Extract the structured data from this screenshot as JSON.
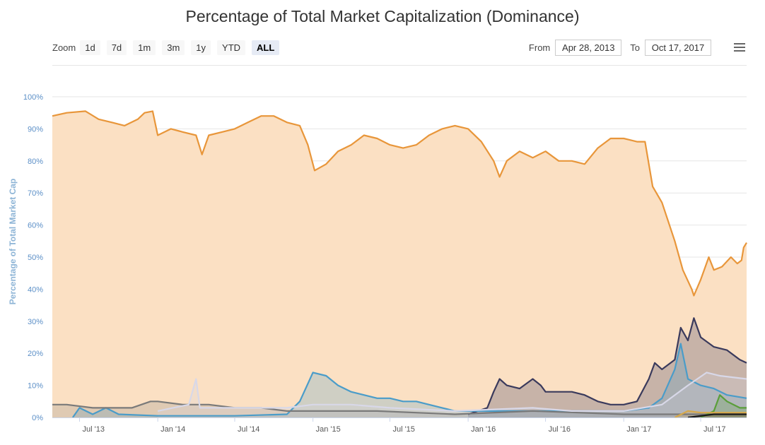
{
  "chart_data": {
    "type": "area",
    "title": "Percentage of Total Market Capitalization (Dominance)",
    "ylabel": "Percentage of Total Market Cap",
    "ylim": [
      0,
      100
    ],
    "y_ticks": [
      "0%",
      "10%",
      "20%",
      "30%",
      "40%",
      "50%",
      "60%",
      "70%",
      "80%",
      "90%",
      "100%"
    ],
    "x_range": [
      "2013-04-28",
      "2017-10-17"
    ],
    "x_ticks": [
      {
        "date": "2013-07-01",
        "label": "Jul '13"
      },
      {
        "date": "2014-01-01",
        "label": "Jan '14"
      },
      {
        "date": "2014-07-01",
        "label": "Jul '14"
      },
      {
        "date": "2015-01-01",
        "label": "Jan '15"
      },
      {
        "date": "2015-07-01",
        "label": "Jul '15"
      },
      {
        "date": "2016-01-01",
        "label": "Jan '16"
      },
      {
        "date": "2016-07-01",
        "label": "Jul '16"
      },
      {
        "date": "2017-01-01",
        "label": "Jan '17"
      },
      {
        "date": "2017-07-01",
        "label": "Jul '17"
      }
    ],
    "grid": true,
    "series": [
      {
        "color": "#e8963a",
        "fill": "#fbe0c3",
        "points": [
          [
            "2013-04-28",
            94
          ],
          [
            "2013-06-01",
            95
          ],
          [
            "2013-07-15",
            95.5
          ],
          [
            "2013-08-15",
            93
          ],
          [
            "2013-09-15",
            92
          ],
          [
            "2013-10-15",
            91
          ],
          [
            "2013-11-15",
            93
          ],
          [
            "2013-12-01",
            95
          ],
          [
            "2013-12-20",
            95.5
          ],
          [
            "2014-01-01",
            88
          ],
          [
            "2014-02-01",
            90
          ],
          [
            "2014-03-01",
            89
          ],
          [
            "2014-04-01",
            88
          ],
          [
            "2014-04-15",
            82
          ],
          [
            "2014-05-01",
            88
          ],
          [
            "2014-06-01",
            89
          ],
          [
            "2014-07-01",
            90
          ],
          [
            "2014-08-01",
            92
          ],
          [
            "2014-09-01",
            94
          ],
          [
            "2014-10-01",
            94
          ],
          [
            "2014-11-01",
            92
          ],
          [
            "2014-12-01",
            91
          ],
          [
            "2014-12-20",
            85
          ],
          [
            "2015-01-05",
            77
          ],
          [
            "2015-02-01",
            79
          ],
          [
            "2015-03-01",
            83
          ],
          [
            "2015-04-01",
            85
          ],
          [
            "2015-05-01",
            88
          ],
          [
            "2015-06-01",
            87
          ],
          [
            "2015-07-01",
            85
          ],
          [
            "2015-08-01",
            84
          ],
          [
            "2015-09-01",
            85
          ],
          [
            "2015-10-01",
            88
          ],
          [
            "2015-11-01",
            90
          ],
          [
            "2015-12-01",
            91
          ],
          [
            "2016-01-01",
            90
          ],
          [
            "2016-02-01",
            86
          ],
          [
            "2016-03-01",
            80
          ],
          [
            "2016-03-15",
            75
          ],
          [
            "2016-04-01",
            80
          ],
          [
            "2016-05-01",
            83
          ],
          [
            "2016-06-01",
            81
          ],
          [
            "2016-07-01",
            83
          ],
          [
            "2016-08-01",
            80
          ],
          [
            "2016-09-01",
            80
          ],
          [
            "2016-10-01",
            79
          ],
          [
            "2016-11-01",
            84
          ],
          [
            "2016-12-01",
            87
          ],
          [
            "2017-01-01",
            87
          ],
          [
            "2017-02-01",
            86
          ],
          [
            "2017-02-20",
            86
          ],
          [
            "2017-03-10",
            72
          ],
          [
            "2017-04-01",
            67
          ],
          [
            "2017-05-01",
            55
          ],
          [
            "2017-05-20",
            46
          ],
          [
            "2017-06-10",
            40
          ],
          [
            "2017-06-15",
            38
          ],
          [
            "2017-07-01",
            43
          ],
          [
            "2017-07-20",
            50
          ],
          [
            "2017-08-01",
            46
          ],
          [
            "2017-08-20",
            47
          ],
          [
            "2017-09-10",
            50
          ],
          [
            "2017-09-25",
            48
          ],
          [
            "2017-10-05",
            49
          ],
          [
            "2017-10-10",
            53
          ],
          [
            "2017-10-17",
            54.5
          ]
        ]
      },
      {
        "color": "#3a3a5c",
        "fill": "rgba(63,63,99,0.28)",
        "points": [
          [
            "2016-01-01",
            1
          ],
          [
            "2016-02-15",
            3
          ],
          [
            "2016-03-01",
            8
          ],
          [
            "2016-03-15",
            12
          ],
          [
            "2016-04-01",
            10
          ],
          [
            "2016-05-01",
            9
          ],
          [
            "2016-06-01",
            12
          ],
          [
            "2016-06-20",
            10
          ],
          [
            "2016-07-01",
            8
          ],
          [
            "2016-08-01",
            8
          ],
          [
            "2016-09-01",
            8
          ],
          [
            "2016-10-01",
            7
          ],
          [
            "2016-11-01",
            5
          ],
          [
            "2016-12-01",
            4
          ],
          [
            "2017-01-01",
            4
          ],
          [
            "2017-02-01",
            5
          ],
          [
            "2017-03-01",
            12
          ],
          [
            "2017-03-15",
            17
          ],
          [
            "2017-04-01",
            15
          ],
          [
            "2017-05-01",
            18
          ],
          [
            "2017-05-15",
            28
          ],
          [
            "2017-06-01",
            24
          ],
          [
            "2017-06-15",
            31
          ],
          [
            "2017-07-01",
            25
          ],
          [
            "2017-08-01",
            22
          ],
          [
            "2017-09-01",
            21
          ],
          [
            "2017-10-01",
            18
          ],
          [
            "2017-10-17",
            17
          ]
        ]
      },
      {
        "color": "#4a9cc9",
        "fill": "rgba(74,156,201,0.25)",
        "points": [
          [
            "2013-06-15",
            0
          ],
          [
            "2013-07-01",
            3
          ],
          [
            "2013-08-01",
            1
          ],
          [
            "2013-09-01",
            3
          ],
          [
            "2013-10-01",
            1
          ],
          [
            "2014-01-01",
            0.5
          ],
          [
            "2014-07-01",
            0.5
          ],
          [
            "2014-11-01",
            1
          ],
          [
            "2014-12-01",
            5
          ],
          [
            "2015-01-01",
            14
          ],
          [
            "2015-02-01",
            13
          ],
          [
            "2015-03-01",
            10
          ],
          [
            "2015-04-01",
            8
          ],
          [
            "2015-05-01",
            7
          ],
          [
            "2015-06-01",
            6
          ],
          [
            "2015-07-01",
            6
          ],
          [
            "2015-08-01",
            5
          ],
          [
            "2015-09-01",
            5
          ],
          [
            "2015-10-01",
            4
          ],
          [
            "2015-11-01",
            3
          ],
          [
            "2015-12-01",
            2
          ],
          [
            "2016-06-01",
            2
          ],
          [
            "2016-10-01",
            2
          ],
          [
            "2017-01-01",
            2
          ],
          [
            "2017-03-01",
            3
          ],
          [
            "2017-04-01",
            6
          ],
          [
            "2017-05-01",
            15
          ],
          [
            "2017-05-15",
            23
          ],
          [
            "2017-06-01",
            12
          ],
          [
            "2017-07-01",
            10
          ],
          [
            "2017-08-01",
            9
          ],
          [
            "2017-09-01",
            7
          ],
          [
            "2017-10-17",
            6
          ]
        ]
      },
      {
        "color": "#7a7a7a",
        "fill": "rgba(122,122,122,0.22)",
        "points": [
          [
            "2013-04-28",
            4
          ],
          [
            "2013-06-01",
            4
          ],
          [
            "2013-08-01",
            3
          ],
          [
            "2013-11-01",
            3
          ],
          [
            "2013-12-15",
            5
          ],
          [
            "2014-01-01",
            5
          ],
          [
            "2014-03-01",
            4
          ],
          [
            "2014-05-01",
            4
          ],
          [
            "2014-07-01",
            3
          ],
          [
            "2014-09-01",
            3
          ],
          [
            "2014-11-01",
            2
          ],
          [
            "2015-01-01",
            2
          ],
          [
            "2015-06-01",
            2
          ],
          [
            "2015-12-01",
            1
          ],
          [
            "2016-06-01",
            2
          ],
          [
            "2017-01-01",
            1
          ],
          [
            "2017-10-17",
            1
          ]
        ]
      },
      {
        "color": "#d8d8e8",
        "fill": "rgba(210,210,225,0.25)",
        "points": [
          [
            "2014-01-01",
            2
          ],
          [
            "2014-03-15",
            4
          ],
          [
            "2014-04-01",
            12
          ],
          [
            "2014-04-10",
            3
          ],
          [
            "2014-07-01",
            3
          ],
          [
            "2014-11-01",
            3
          ],
          [
            "2015-01-01",
            4
          ],
          [
            "2015-04-01",
            4
          ],
          [
            "2015-07-01",
            3
          ],
          [
            "2015-12-01",
            2
          ],
          [
            "2016-06-01",
            3
          ],
          [
            "2016-09-01",
            2
          ],
          [
            "2017-01-01",
            2
          ],
          [
            "2017-04-01",
            4
          ],
          [
            "2017-06-01",
            10
          ],
          [
            "2017-07-15",
            14
          ],
          [
            "2017-08-15",
            13
          ],
          [
            "2017-10-17",
            12
          ]
        ]
      },
      {
        "color": "#5a9e3a",
        "fill": "rgba(90,158,58,0.25)",
        "points": [
          [
            "2017-07-01",
            0
          ],
          [
            "2017-08-01",
            2
          ],
          [
            "2017-08-15",
            7
          ],
          [
            "2017-09-01",
            5
          ],
          [
            "2017-10-01",
            3
          ],
          [
            "2017-10-17",
            3
          ]
        ]
      },
      {
        "color": "#d6a84a",
        "fill": "rgba(214,168,74,0.25)",
        "points": [
          [
            "2017-05-01",
            0
          ],
          [
            "2017-06-01",
            2
          ],
          [
            "2017-07-01",
            1.5
          ],
          [
            "2017-08-01",
            1.5
          ],
          [
            "2017-10-17",
            1.5
          ]
        ]
      },
      {
        "color": "#1a1a1a",
        "fill": "rgba(30,30,30,0.2)",
        "points": [
          [
            "2017-06-01",
            0
          ],
          [
            "2017-08-01",
            1
          ],
          [
            "2017-10-17",
            1
          ]
        ]
      }
    ]
  },
  "toolbar": {
    "zoom_label": "Zoom",
    "zoom_buttons": [
      "1d",
      "7d",
      "1m",
      "3m",
      "1y",
      "YTD",
      "ALL"
    ],
    "selected": "ALL",
    "from_label": "From",
    "from_value": "Apr 28, 2013",
    "to_label": "To",
    "to_value": "Oct 17, 2017"
  },
  "icons": {
    "menu": "hamburger-menu-icon"
  }
}
